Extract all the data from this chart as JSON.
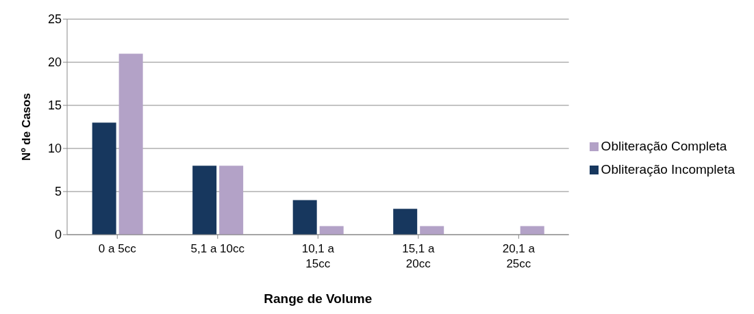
{
  "chart_data": {
    "type": "bar",
    "xlabel": "Range de Volume",
    "ylabel": "Nº de Casos",
    "categories": [
      "0 a 5cc",
      "5,1 a 10cc",
      "10,1 a 15cc",
      "15,1 a 20cc",
      "20,1 a 25cc"
    ],
    "series": [
      {
        "name": "Obliteração Incompleta",
        "color": "#17375e",
        "values": [
          13,
          8,
          4,
          3,
          0
        ]
      },
      {
        "name": "Obliteração Completa",
        "color": "#b3a2c7",
        "values": [
          21,
          8,
          1,
          1,
          1
        ]
      }
    ],
    "ylim": [
      0,
      25
    ],
    "yticks": [
      0,
      5,
      10,
      15,
      20,
      25
    ],
    "grid": "y",
    "legend": "right"
  }
}
